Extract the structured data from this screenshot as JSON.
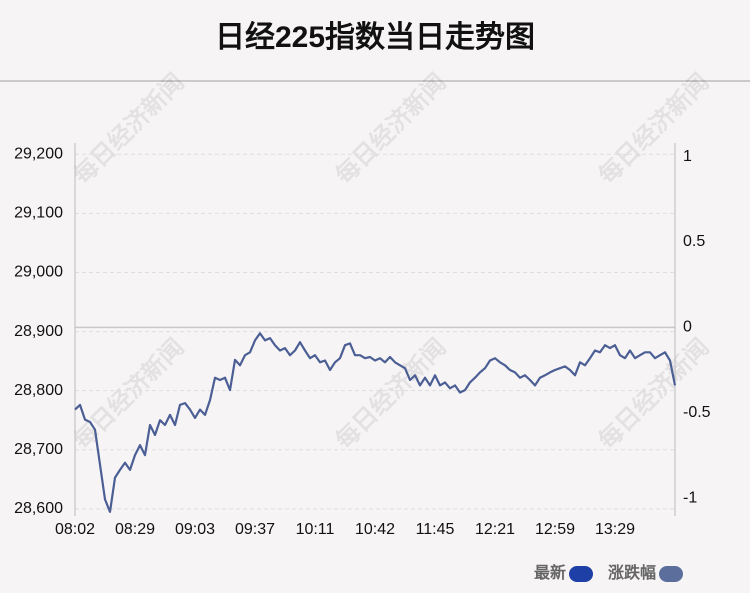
{
  "chart_data": {
    "type": "line",
    "title": "日经225指数当日走势图",
    "watermark": "每日经济新闻",
    "categories": [
      "08:02",
      null,
      null,
      null,
      null,
      null,
      null,
      null,
      null,
      null,
      null,
      null,
      "08:29",
      null,
      null,
      null,
      null,
      null,
      null,
      null,
      null,
      null,
      null,
      null,
      "09:03",
      null,
      null,
      null,
      null,
      null,
      null,
      null,
      null,
      null,
      null,
      null,
      "09:37",
      null,
      null,
      null,
      null,
      null,
      null,
      null,
      null,
      null,
      null,
      null,
      "10:11",
      null,
      null,
      null,
      null,
      null,
      null,
      null,
      null,
      null,
      null,
      null,
      "10:42",
      null,
      null,
      null,
      null,
      null,
      null,
      null,
      null,
      null,
      null,
      null,
      "11:45",
      null,
      null,
      null,
      null,
      null,
      null,
      null,
      null,
      null,
      null,
      null,
      "12:21",
      null,
      null,
      null,
      null,
      null,
      null,
      null,
      null,
      null,
      null,
      null,
      "12:59",
      null,
      null,
      null,
      null,
      null,
      null,
      null,
      null,
      null,
      null,
      null,
      "13:29",
      null,
      null,
      null,
      null,
      null,
      null,
      null,
      null,
      null,
      null,
      null,
      null
    ],
    "series": [
      {
        "name": "最新",
        "color": "#4b5f94",
        "values": [
          28768,
          28776,
          28751,
          28747,
          28734,
          28675,
          28616,
          28595,
          28653,
          28666,
          28678,
          28666,
          28691,
          28708,
          28691,
          28742,
          28725,
          28750,
          28742,
          28759,
          28742,
          28776,
          28779,
          28768,
          28754,
          28768,
          28759,
          28784,
          28822,
          28818,
          28822,
          28801,
          28852,
          28843,
          28860,
          28865,
          28885,
          28897,
          28885,
          28889,
          28877,
          28868,
          28872,
          28860,
          28868,
          28882,
          28868,
          28855,
          28860,
          28848,
          28851,
          28835,
          28848,
          28855,
          28877,
          28880,
          28860,
          28860,
          28855,
          28857,
          28851,
          28855,
          28848,
          28857,
          28848,
          28843,
          28838,
          28818,
          28826,
          28809,
          28822,
          28809,
          28826,
          28809,
          28814,
          28804,
          28809,
          28797,
          28801,
          28814,
          28822,
          28831,
          28838,
          28851,
          28855,
          28848,
          28843,
          28835,
          28831,
          28822,
          28826,
          28818,
          28809,
          28822,
          28826,
          28831,
          28835,
          28838,
          28841,
          28835,
          28826,
          28848,
          28843,
          28855,
          28868,
          28865,
          28877,
          28872,
          28877,
          28860,
          28855,
          28868,
          28855,
          28860,
          28865,
          28865,
          28855,
          28860,
          28865,
          28851,
          28809
        ]
      }
    ],
    "legend": [
      {
        "name": "最新",
        "color": "#1d3fa6"
      },
      {
        "name": "涨跌幅",
        "color": "#5b6e9c"
      }
    ],
    "ylim": [
      28588,
      29219
    ],
    "yticks": [
      {
        "value": 28600,
        "label": "28,600"
      },
      {
        "value": 28700,
        "label": "28,700"
      },
      {
        "value": 28800,
        "label": "28,800"
      },
      {
        "value": 28900,
        "label": "28,900"
      },
      {
        "value": 29000,
        "label": "29,000"
      },
      {
        "value": 29100,
        "label": "29,100"
      },
      {
        "value": 29200,
        "label": "29,200"
      }
    ],
    "y2lim": [
      -1.105,
      1.08
    ],
    "y2ticks": [
      -1,
      -0.5,
      0,
      0.5,
      1
    ],
    "grid": true
  }
}
